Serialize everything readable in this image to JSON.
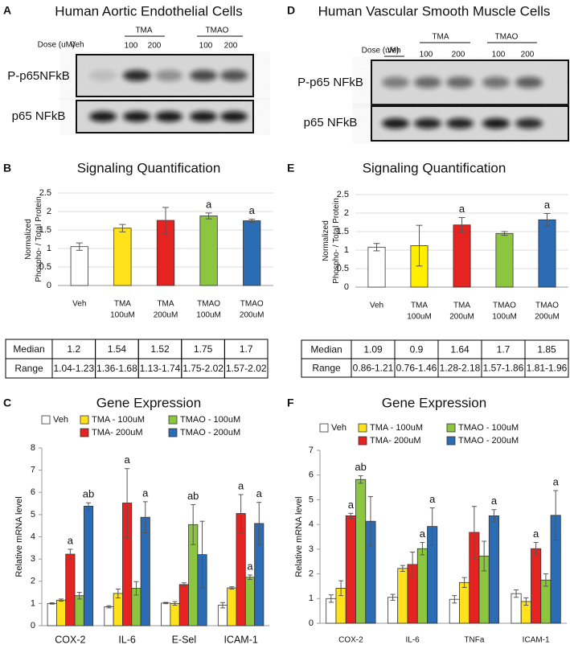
{
  "blots": [
    {
      "letter": "A",
      "title": "Human Aortic Endothelial Cells",
      "dose_label": "Dose (uM)",
      "groups": [
        "Veh",
        "TMA",
        "TMAO"
      ],
      "doses": [
        "100",
        "200",
        "100",
        "200"
      ],
      "rows": [
        "P-p65NFkB",
        "p65 NFkB"
      ]
    },
    {
      "letter": "D",
      "title": "Human Vascular Smooth Muscle Cells",
      "dose_label": "Dose (uM)",
      "groups": [
        "Veh",
        "TMA",
        "TMAO"
      ],
      "doses": [
        "100",
        "200",
        "100",
        "200"
      ],
      "rows": [
        "P-p65 NFkB",
        "p65 NFkB"
      ]
    }
  ],
  "chart_data": [
    {
      "type": "bar",
      "letter": "B",
      "title": "Signaling Quantification",
      "ylabel": [
        "Normalized",
        "Phospho- / Total Protein"
      ],
      "categories": [
        [
          "Veh"
        ],
        [
          "TMA",
          "100uM"
        ],
        [
          "TMA",
          "200uM"
        ],
        [
          "TMAO",
          "100uM"
        ],
        [
          "TMAO",
          "200uM"
        ]
      ],
      "values": [
        1.05,
        1.55,
        1.76,
        1.88,
        1.75
      ],
      "errors": [
        0.1,
        0.1,
        0.35,
        0.08,
        0.04
      ],
      "colors": [
        "#ffffff",
        "#ffe21a",
        "#e52321",
        "#8cc63f",
        "#2b6cb4"
      ],
      "annotations": [
        null,
        null,
        null,
        "a",
        "a"
      ],
      "ylim": [
        0,
        2.5
      ],
      "yticks": [
        0,
        0.5,
        1,
        1.5,
        2,
        2.5
      ],
      "grid": true
    },
    {
      "type": "bar",
      "letter": "E",
      "title": "Signaling Quantification",
      "ylabel": [
        "Normalized",
        "Phospho- / Total Protein"
      ],
      "categories": [
        [
          "Veh"
        ],
        [
          "TMA",
          "100uM"
        ],
        [
          "TMA",
          "200uM"
        ],
        [
          "TMAO",
          "100uM"
        ],
        [
          "TMAO",
          "200uM"
        ]
      ],
      "values": [
        1.08,
        1.12,
        1.68,
        1.45,
        1.82
      ],
      "errors": [
        0.1,
        0.55,
        0.2,
        0.05,
        0.17
      ],
      "colors": [
        "#ffffff",
        "#ffee00",
        "#e52321",
        "#8cc63f",
        "#2b6cb4"
      ],
      "annotations": [
        null,
        null,
        "a",
        null,
        "a"
      ],
      "ylim": [
        0,
        2.5
      ],
      "yticks": [
        0,
        0.5,
        1,
        1.5,
        2,
        2.5
      ],
      "grid": true
    },
    {
      "type": "bar",
      "letter": "C",
      "title": "Gene Expression",
      "ylabel": [
        "Relative mRNA level"
      ],
      "categories": [
        [
          "COX-2"
        ],
        [
          "IL-6"
        ],
        [
          "E-Sel"
        ],
        [
          "ICAM-1"
        ]
      ],
      "series": [
        {
          "name": "Veh",
          "color": "#ffffff",
          "values": [
            1.0,
            0.85,
            1.02,
            0.92
          ],
          "errors": [
            0.03,
            0.05,
            0.03,
            0.12
          ],
          "annotations": [
            null,
            null,
            null,
            null
          ]
        },
        {
          "name": "TMA - 100uM",
          "color": "#ffe21a",
          "values": [
            1.15,
            1.45,
            1.0,
            1.7
          ],
          "errors": [
            0.05,
            0.2,
            0.08,
            0.05
          ],
          "annotations": [
            null,
            null,
            null,
            null
          ]
        },
        {
          "name": "TMA-  200uM",
          "color": "#e52321",
          "values": [
            3.22,
            5.52,
            1.85,
            5.05
          ],
          "errors": [
            0.22,
            1.55,
            0.08,
            0.85
          ],
          "annotations": [
            "a",
            "a",
            null,
            "a"
          ]
        },
        {
          "name": "TMAO - 100uM",
          "color": "#8cc63f",
          "values": [
            1.35,
            1.68,
            4.55,
            2.18
          ],
          "errors": [
            0.15,
            0.3,
            0.9,
            0.1
          ],
          "annotations": [
            null,
            null,
            "ab",
            "a"
          ]
        },
        {
          "name": "TMAO - 200uM",
          "color": "#2b6cb4",
          "values": [
            5.38,
            4.88,
            3.2,
            4.6
          ],
          "errors": [
            0.15,
            0.7,
            1.5,
            0.95
          ],
          "annotations": [
            "ab",
            "a",
            null,
            "a"
          ]
        }
      ],
      "ylim": [
        0,
        8
      ],
      "yticks": [
        0,
        1,
        2,
        3,
        4,
        5,
        6,
        7,
        8
      ],
      "grid": false
    },
    {
      "type": "bar",
      "letter": "F",
      "title": "Gene Expression",
      "ylabel": [
        "Relative mRNA level"
      ],
      "categories": [
        [
          "COX-2"
        ],
        [
          "IL-6"
        ],
        [
          "TNFa"
        ],
        [
          "ICAM-1"
        ]
      ],
      "series": [
        {
          "name": "Veh",
          "color": "#ffffff",
          "values": [
            1.0,
            1.05,
            0.97,
            1.2
          ],
          "errors": [
            0.15,
            0.12,
            0.15,
            0.15
          ],
          "annotations": [
            null,
            null,
            null,
            null
          ]
        },
        {
          "name": "TMA - 100uM",
          "color": "#ffe21a",
          "values": [
            1.42,
            2.22,
            1.65,
            0.88
          ],
          "errors": [
            0.3,
            0.12,
            0.2,
            0.15
          ],
          "annotations": [
            null,
            null,
            null,
            null
          ]
        },
        {
          "name": "TMA-  200uM",
          "color": "#e52321",
          "values": [
            4.35,
            2.38,
            3.68,
            3.02
          ],
          "errors": [
            0.1,
            0.5,
            1.05,
            0.25
          ],
          "annotations": [
            "a",
            null,
            null,
            "a"
          ]
        },
        {
          "name": "TMAO - 100uM",
          "color": "#8cc63f",
          "values": [
            5.82,
            3.02,
            2.72,
            1.75
          ],
          "errors": [
            0.15,
            0.25,
            0.6,
            0.25
          ],
          "annotations": [
            "ab",
            "a",
            null,
            null
          ]
        },
        {
          "name": "TMAO - 200uM",
          "color": "#2b6cb4",
          "values": [
            4.13,
            3.92,
            4.35,
            4.37
          ],
          "errors": [
            1.0,
            0.75,
            0.25,
            1.0
          ],
          "annotations": [
            null,
            "a",
            "a",
            "a"
          ]
        }
      ],
      "ylim": [
        0,
        7
      ],
      "yticks": [
        0,
        1,
        2,
        3,
        4,
        5,
        6,
        7
      ],
      "grid": false
    }
  ],
  "tables": [
    {
      "rows": [
        [
          "Median",
          1.2,
          1.54,
          1.52,
          1.75,
          1.7
        ],
        [
          "Range",
          "1.04-1.23",
          "1.36-1.68",
          "1.13-1.74",
          "1.75-2.02",
          "1.57-2.02"
        ]
      ]
    },
    {
      "rows": [
        [
          "Median",
          1.09,
          0.9,
          1.64,
          1.7,
          1.85
        ],
        [
          "Range",
          "0.86-1.21",
          "0.76-1.46",
          "1.28-2.18",
          "1.57-1.86",
          "1.81-1.96"
        ]
      ]
    }
  ]
}
